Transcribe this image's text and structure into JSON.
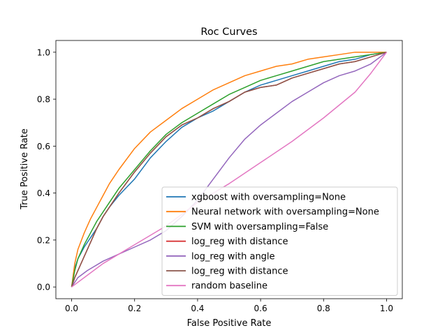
{
  "chart_data": {
    "type": "line",
    "title": "Roc Curves",
    "xlabel": "False Positive Rate",
    "ylabel": "True Positive Rate",
    "xlim": [
      -0.05,
      1.05
    ],
    "ylim": [
      -0.05,
      1.05
    ],
    "xticks": [
      "0.0",
      "0.2",
      "0.4",
      "0.6",
      "0.8",
      "1.0"
    ],
    "yticks": [
      "0.0",
      "0.2",
      "0.4",
      "0.6",
      "0.8",
      "1.0"
    ],
    "grid": false,
    "legend_position": "lower-right",
    "series": [
      {
        "name": "xgboost with oversampling=None",
        "color": "#1f77b4",
        "points": [
          [
            0,
            0
          ],
          [
            0.01,
            0.08
          ],
          [
            0.02,
            0.12
          ],
          [
            0.04,
            0.17
          ],
          [
            0.06,
            0.21
          ],
          [
            0.08,
            0.25
          ],
          [
            0.1,
            0.3
          ],
          [
            0.12,
            0.34
          ],
          [
            0.15,
            0.39
          ],
          [
            0.2,
            0.46
          ],
          [
            0.25,
            0.55
          ],
          [
            0.3,
            0.62
          ],
          [
            0.35,
            0.68
          ],
          [
            0.4,
            0.72
          ],
          [
            0.45,
            0.75
          ],
          [
            0.5,
            0.79
          ],
          [
            0.55,
            0.83
          ],
          [
            0.6,
            0.86
          ],
          [
            0.65,
            0.88
          ],
          [
            0.7,
            0.9
          ],
          [
            0.75,
            0.92
          ],
          [
            0.8,
            0.94
          ],
          [
            0.85,
            0.96
          ],
          [
            0.9,
            0.97
          ],
          [
            0.95,
            0.99
          ],
          [
            1,
            1
          ]
        ]
      },
      {
        "name": "Neural network with oversampling=None",
        "color": "#ff7f0e",
        "points": [
          [
            0,
            0
          ],
          [
            0.01,
            0.1
          ],
          [
            0.02,
            0.16
          ],
          [
            0.04,
            0.23
          ],
          [
            0.06,
            0.29
          ],
          [
            0.08,
            0.34
          ],
          [
            0.1,
            0.39
          ],
          [
            0.12,
            0.44
          ],
          [
            0.15,
            0.5
          ],
          [
            0.2,
            0.59
          ],
          [
            0.25,
            0.66
          ],
          [
            0.3,
            0.71
          ],
          [
            0.35,
            0.76
          ],
          [
            0.4,
            0.8
          ],
          [
            0.45,
            0.84
          ],
          [
            0.5,
            0.87
          ],
          [
            0.55,
            0.9
          ],
          [
            0.6,
            0.92
          ],
          [
            0.65,
            0.94
          ],
          [
            0.7,
            0.95
          ],
          [
            0.75,
            0.97
          ],
          [
            0.8,
            0.98
          ],
          [
            0.85,
            0.99
          ],
          [
            0.9,
            1
          ],
          [
            1,
            1
          ]
        ]
      },
      {
        "name": "SVM with oversampling=False",
        "color": "#2ca02c",
        "points": [
          [
            0,
            0
          ],
          [
            0.01,
            0.07
          ],
          [
            0.02,
            0.12
          ],
          [
            0.04,
            0.18
          ],
          [
            0.06,
            0.23
          ],
          [
            0.08,
            0.28
          ],
          [
            0.1,
            0.32
          ],
          [
            0.12,
            0.36
          ],
          [
            0.15,
            0.42
          ],
          [
            0.2,
            0.5
          ],
          [
            0.25,
            0.58
          ],
          [
            0.3,
            0.65
          ],
          [
            0.35,
            0.7
          ],
          [
            0.4,
            0.74
          ],
          [
            0.45,
            0.78
          ],
          [
            0.5,
            0.82
          ],
          [
            0.55,
            0.85
          ],
          [
            0.6,
            0.88
          ],
          [
            0.65,
            0.9
          ],
          [
            0.7,
            0.92
          ],
          [
            0.75,
            0.94
          ],
          [
            0.8,
            0.96
          ],
          [
            0.85,
            0.97
          ],
          [
            0.9,
            0.98
          ],
          [
            0.95,
            0.99
          ],
          [
            1,
            1
          ]
        ]
      },
      {
        "name": "log_reg with distance",
        "color": "#d62728",
        "points": [
          [
            0,
            0
          ],
          [
            0.01,
            0.04
          ],
          [
            0.02,
            0.07
          ],
          [
            0.04,
            0.13
          ],
          [
            0.06,
            0.19
          ],
          [
            0.08,
            0.25
          ],
          [
            0.1,
            0.3
          ],
          [
            0.12,
            0.34
          ],
          [
            0.15,
            0.4
          ],
          [
            0.2,
            0.49
          ],
          [
            0.25,
            0.57
          ],
          [
            0.3,
            0.64
          ],
          [
            0.35,
            0.69
          ],
          [
            0.4,
            0.72
          ],
          [
            0.45,
            0.76
          ],
          [
            0.5,
            0.79
          ],
          [
            0.55,
            0.83
          ],
          [
            0.6,
            0.85
          ],
          [
            0.65,
            0.86
          ],
          [
            0.7,
            0.89
          ],
          [
            0.75,
            0.91
          ],
          [
            0.8,
            0.93
          ],
          [
            0.85,
            0.95
          ],
          [
            0.9,
            0.96
          ],
          [
            0.95,
            0.98
          ],
          [
            1,
            1
          ]
        ]
      },
      {
        "name": "log_reg with angle",
        "color": "#9467bd",
        "points": [
          [
            0,
            0
          ],
          [
            0.02,
            0.04
          ],
          [
            0.05,
            0.07
          ],
          [
            0.1,
            0.11
          ],
          [
            0.15,
            0.14
          ],
          [
            0.2,
            0.17
          ],
          [
            0.25,
            0.2
          ],
          [
            0.3,
            0.24
          ],
          [
            0.35,
            0.3
          ],
          [
            0.4,
            0.37
          ],
          [
            0.45,
            0.46
          ],
          [
            0.5,
            0.55
          ],
          [
            0.55,
            0.63
          ],
          [
            0.6,
            0.69
          ],
          [
            0.65,
            0.74
          ],
          [
            0.7,
            0.79
          ],
          [
            0.75,
            0.83
          ],
          [
            0.8,
            0.87
          ],
          [
            0.85,
            0.9
          ],
          [
            0.9,
            0.92
          ],
          [
            0.95,
            0.95
          ],
          [
            1,
            1
          ]
        ]
      },
      {
        "name": "log_reg with distance",
        "color": "#8c564b",
        "points": [
          [
            0,
            0
          ],
          [
            0.01,
            0.04
          ],
          [
            0.02,
            0.07
          ],
          [
            0.04,
            0.13
          ],
          [
            0.06,
            0.19
          ],
          [
            0.08,
            0.25
          ],
          [
            0.1,
            0.3
          ],
          [
            0.12,
            0.34
          ],
          [
            0.15,
            0.4
          ],
          [
            0.2,
            0.49
          ],
          [
            0.25,
            0.57
          ],
          [
            0.3,
            0.64
          ],
          [
            0.35,
            0.69
          ],
          [
            0.4,
            0.72
          ],
          [
            0.45,
            0.76
          ],
          [
            0.5,
            0.79
          ],
          [
            0.55,
            0.83
          ],
          [
            0.6,
            0.85
          ],
          [
            0.65,
            0.86
          ],
          [
            0.7,
            0.89
          ],
          [
            0.75,
            0.91
          ],
          [
            0.8,
            0.93
          ],
          [
            0.85,
            0.95
          ],
          [
            0.9,
            0.96
          ],
          [
            0.95,
            0.98
          ],
          [
            1,
            1
          ]
        ]
      },
      {
        "name": "random baseline",
        "color": "#e377c2",
        "points": [
          [
            0,
            0
          ],
          [
            0.05,
            0.05
          ],
          [
            0.1,
            0.1
          ],
          [
            0.2,
            0.18
          ],
          [
            0.3,
            0.26
          ],
          [
            0.4,
            0.36
          ],
          [
            0.5,
            0.44
          ],
          [
            0.6,
            0.53
          ],
          [
            0.7,
            0.62
          ],
          [
            0.8,
            0.72
          ],
          [
            0.9,
            0.83
          ],
          [
            0.95,
            0.91
          ],
          [
            1,
            1
          ]
        ]
      }
    ]
  }
}
